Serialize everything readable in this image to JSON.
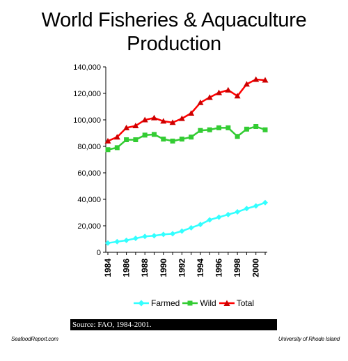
{
  "title_lines": [
    "World Fisheries & Aquaculture",
    "Production"
  ],
  "source_text": "Source: FAO, 1984-2001.",
  "footer": {
    "left": "SeafoodReport.com",
    "right": "University of Rhode Island"
  },
  "colors": {
    "farmed": "#33ffff",
    "wild": "#33cc33",
    "total": "#ff0000"
  },
  "chart_data": {
    "type": "line",
    "title": "World Fisheries & Aquaculture Production",
    "xlabel": "",
    "ylabel": "",
    "x": [
      1984,
      1985,
      1986,
      1987,
      1988,
      1989,
      1990,
      1991,
      1992,
      1993,
      1994,
      1995,
      1996,
      1997,
      1998,
      1999,
      2000,
      2001
    ],
    "xticks": [
      "1984",
      "1986",
      "1988",
      "1990",
      "1992",
      "1994",
      "1996",
      "1998",
      "2000"
    ],
    "ylim": [
      0,
      140000
    ],
    "yticks": [
      "0",
      "20,000",
      "40,000",
      "60,000",
      "80,000",
      "100,000",
      "120,000",
      "140,000"
    ],
    "grid": false,
    "legend_position": "bottom",
    "series": [
      {
        "name": "Farmed",
        "marker": "diamond",
        "values": [
          7000,
          8000,
          9000,
          10500,
          12000,
          12500,
          13500,
          14000,
          16000,
          18500,
          21000,
          24500,
          26500,
          28500,
          30500,
          33000,
          35000,
          37500
        ]
      },
      {
        "name": "Wild",
        "marker": "square",
        "values": [
          77500,
          79000,
          85000,
          85000,
          88500,
          89000,
          85500,
          84000,
          85500,
          87000,
          92000,
          92500,
          94000,
          94000,
          87500,
          93000,
          95000,
          92500
        ]
      },
      {
        "name": "Total",
        "marker": "triangle",
        "values": [
          84000,
          87000,
          94000,
          95500,
          100000,
          101500,
          99000,
          98000,
          101000,
          105000,
          113000,
          117000,
          120500,
          122500,
          118000,
          127000,
          130500,
          130000
        ]
      }
    ]
  }
}
